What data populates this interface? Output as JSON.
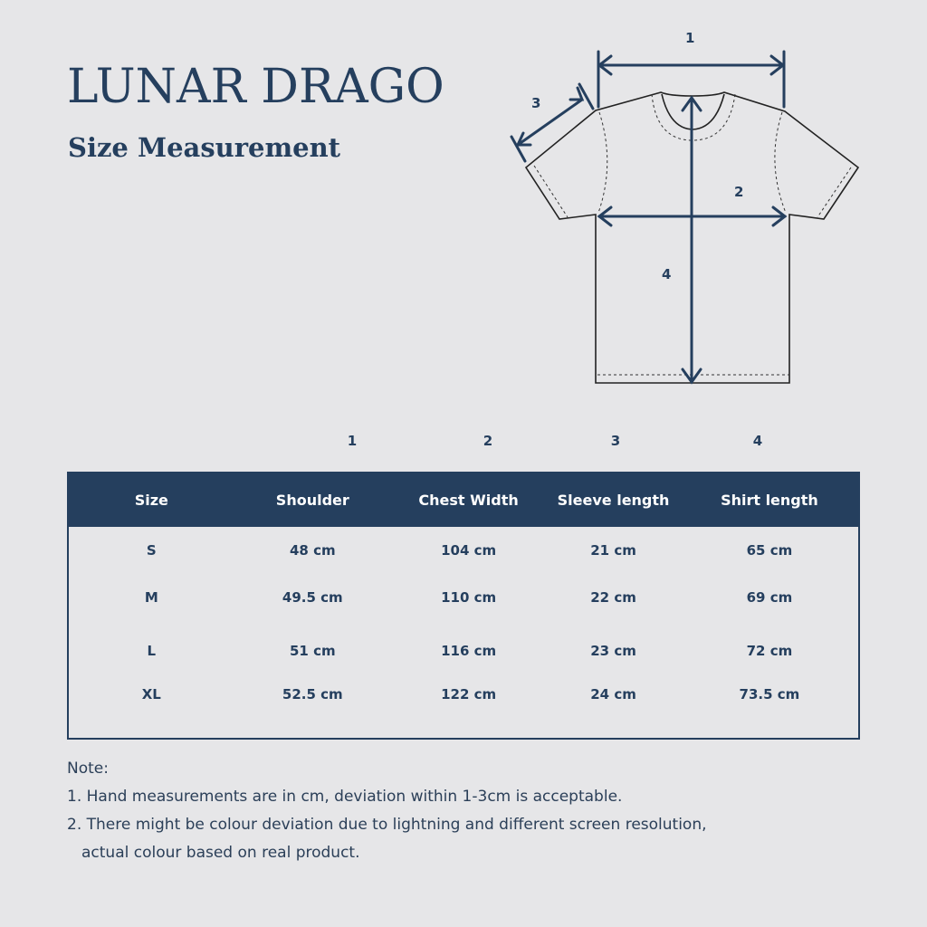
{
  "brand": "LUNAR DRAGO",
  "subtitle": "Size Measurement",
  "diagram": {
    "labels": [
      "1",
      "2",
      "3",
      "4"
    ]
  },
  "colors": {
    "navy": "#253f5e",
    "background": "#e6e6e8"
  },
  "table": {
    "column_numbers": [
      "1",
      "2",
      "3",
      "4"
    ],
    "headers": [
      "Size",
      "Shoulder",
      "Chest Width",
      "Sleeve length",
      "Shirt length"
    ],
    "rows": [
      [
        "S",
        "48 cm",
        "104 cm",
        "21 cm",
        "65 cm"
      ],
      [
        "M",
        "49.5 cm",
        "110 cm",
        "22 cm",
        "69 cm"
      ],
      [
        "L",
        "51 cm",
        "116 cm",
        "23 cm",
        "72 cm"
      ],
      [
        "XL",
        "52.5 cm",
        "122 cm",
        "24 cm",
        "73.5 cm"
      ]
    ]
  },
  "notes": {
    "title": "Note:",
    "items": [
      "1. Hand measurements are in cm, deviation within 1-3cm is acceptable.",
      "2. There might be colour deviation due to lightning and different screen resolution,",
      "actual colour based on real product."
    ]
  }
}
